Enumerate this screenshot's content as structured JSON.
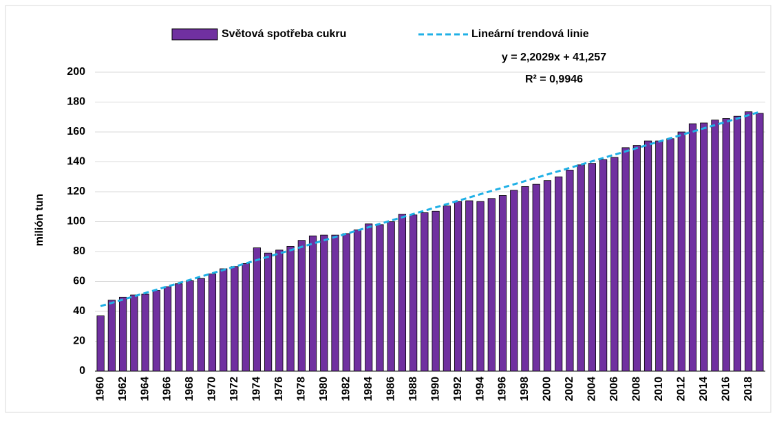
{
  "chart_data": {
    "type": "bar",
    "ylabel": "milión tun",
    "categories": [
      "1960",
      null,
      "1962",
      null,
      "1964",
      null,
      "1966",
      null,
      "1968",
      null,
      "1970",
      null,
      "1972",
      null,
      "1974",
      null,
      "1976",
      null,
      "1978",
      null,
      "1980",
      null,
      "1982",
      null,
      "1984",
      null,
      "1986",
      null,
      "1988",
      null,
      "1990",
      null,
      "1992",
      null,
      "1994",
      null,
      "1996",
      null,
      "1998",
      null,
      "2000",
      null,
      "2002",
      null,
      "2004",
      null,
      "2006",
      null,
      "2008",
      null,
      "2010",
      null,
      "2012",
      null,
      "2014",
      null,
      "2016",
      null,
      "2018",
      null
    ],
    "series": [
      {
        "name": "Světová spotřeba cukru",
        "color": "#7030a0",
        "values": [
          37,
          47.5,
          49.5,
          51,
          51.5,
          54,
          56.5,
          58.5,
          60.5,
          62,
          65,
          68.5,
          70,
          72,
          82.5,
          79,
          81,
          83.5,
          87.5,
          90.5,
          91,
          91,
          92,
          94.5,
          98.5,
          98,
          100,
          105,
          104.5,
          106,
          107,
          110.5,
          113.5,
          114,
          113.5,
          115.5,
          117.5,
          121,
          123.5,
          125,
          127.5,
          130,
          134.5,
          138,
          139,
          141.5,
          143,
          149.5,
          151,
          154,
          154,
          155.5,
          160,
          165.5,
          166,
          168,
          169,
          170.5,
          173.5,
          172.5
        ]
      }
    ],
    "trend": {
      "name": "Lineární trendová linie",
      "color": "#1fb0e6",
      "equation": "y = 2,2029x + 41,257",
      "r2": "R² = 0,9946",
      "slope": 2.2029,
      "intercept": 41.257
    },
    "ylim": [
      0,
      200
    ],
    "yticks": [
      0,
      20,
      40,
      60,
      80,
      100,
      120,
      140,
      160,
      180,
      200
    ],
    "grid": true
  }
}
